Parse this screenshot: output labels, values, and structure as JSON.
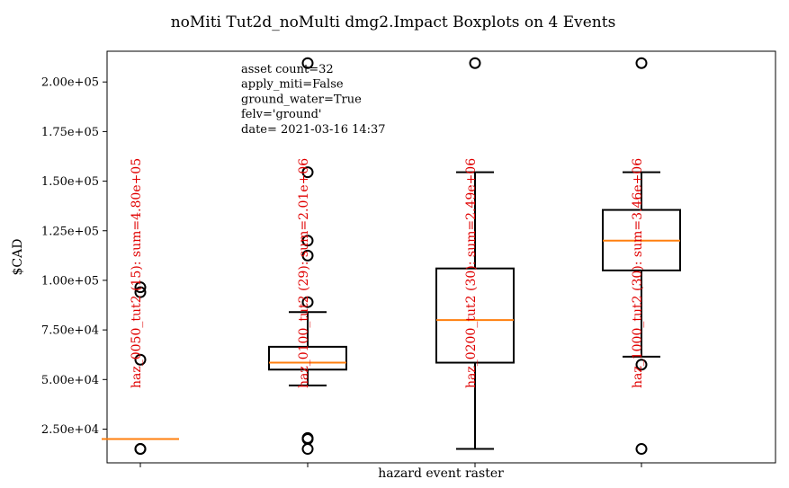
{
  "chart_data": {
    "type": "box",
    "title": "noMiti Tut2d_noMulti dmg2.Impact Boxplots on 4 Events",
    "xlabel": "hazard event raster",
    "ylabel": "$CAD",
    "ylim": [
      8000,
      215500
    ],
    "yticks": [
      25000,
      50000,
      75000,
      100000,
      125000,
      150000,
      175000,
      200000
    ],
    "ytick_labels": [
      "2.50e+04",
      "5.00e+04",
      "7.50e+04",
      "1.00e+05",
      "1.25e+05",
      "1.50e+05",
      "1.75e+05",
      "2.00e+05"
    ],
    "grid": false,
    "legend": "none",
    "annotation": [
      "asset count=32",
      "apply_miti=False",
      "ground_water=True",
      "felv='ground'",
      "date= 2021-03-16 14:37"
    ],
    "colors": {
      "box": "#000000",
      "median": "#ff7f0e",
      "label": "#e00000"
    },
    "series": [
      {
        "label": "haz_0050_tut2 (15): sum=4.80e+05",
        "q1": 20000,
        "median": 20000,
        "q3": 20000,
        "whisker_low": 20000,
        "whisker_high": 20000,
        "fliers": [
          15000,
          15000,
          60000,
          94000,
          96500
        ]
      },
      {
        "label": "haz_0100_tut2 (29): sum=2.01e+06",
        "q1": 55000,
        "median": 58500,
        "q3": 66500,
        "whisker_low": 47000,
        "whisker_high": 84000,
        "fliers": [
          15000,
          20000,
          20500,
          89000,
          112500,
          120000,
          154500,
          209500
        ]
      },
      {
        "label": "haz_0200_tut2 (30): sum=2.49e+06",
        "q1": 58500,
        "median": 80000,
        "q3": 106000,
        "whisker_low": 15000,
        "whisker_high": 154500,
        "fliers": [
          209500
        ]
      },
      {
        "label": "haz_1000_tut2 (30): sum=3.46e+06",
        "q1": 105000,
        "median": 120000,
        "q3": 135500,
        "whisker_low": 61500,
        "whisker_high": 154500,
        "fliers": [
          15000,
          57500,
          209500
        ]
      }
    ]
  }
}
